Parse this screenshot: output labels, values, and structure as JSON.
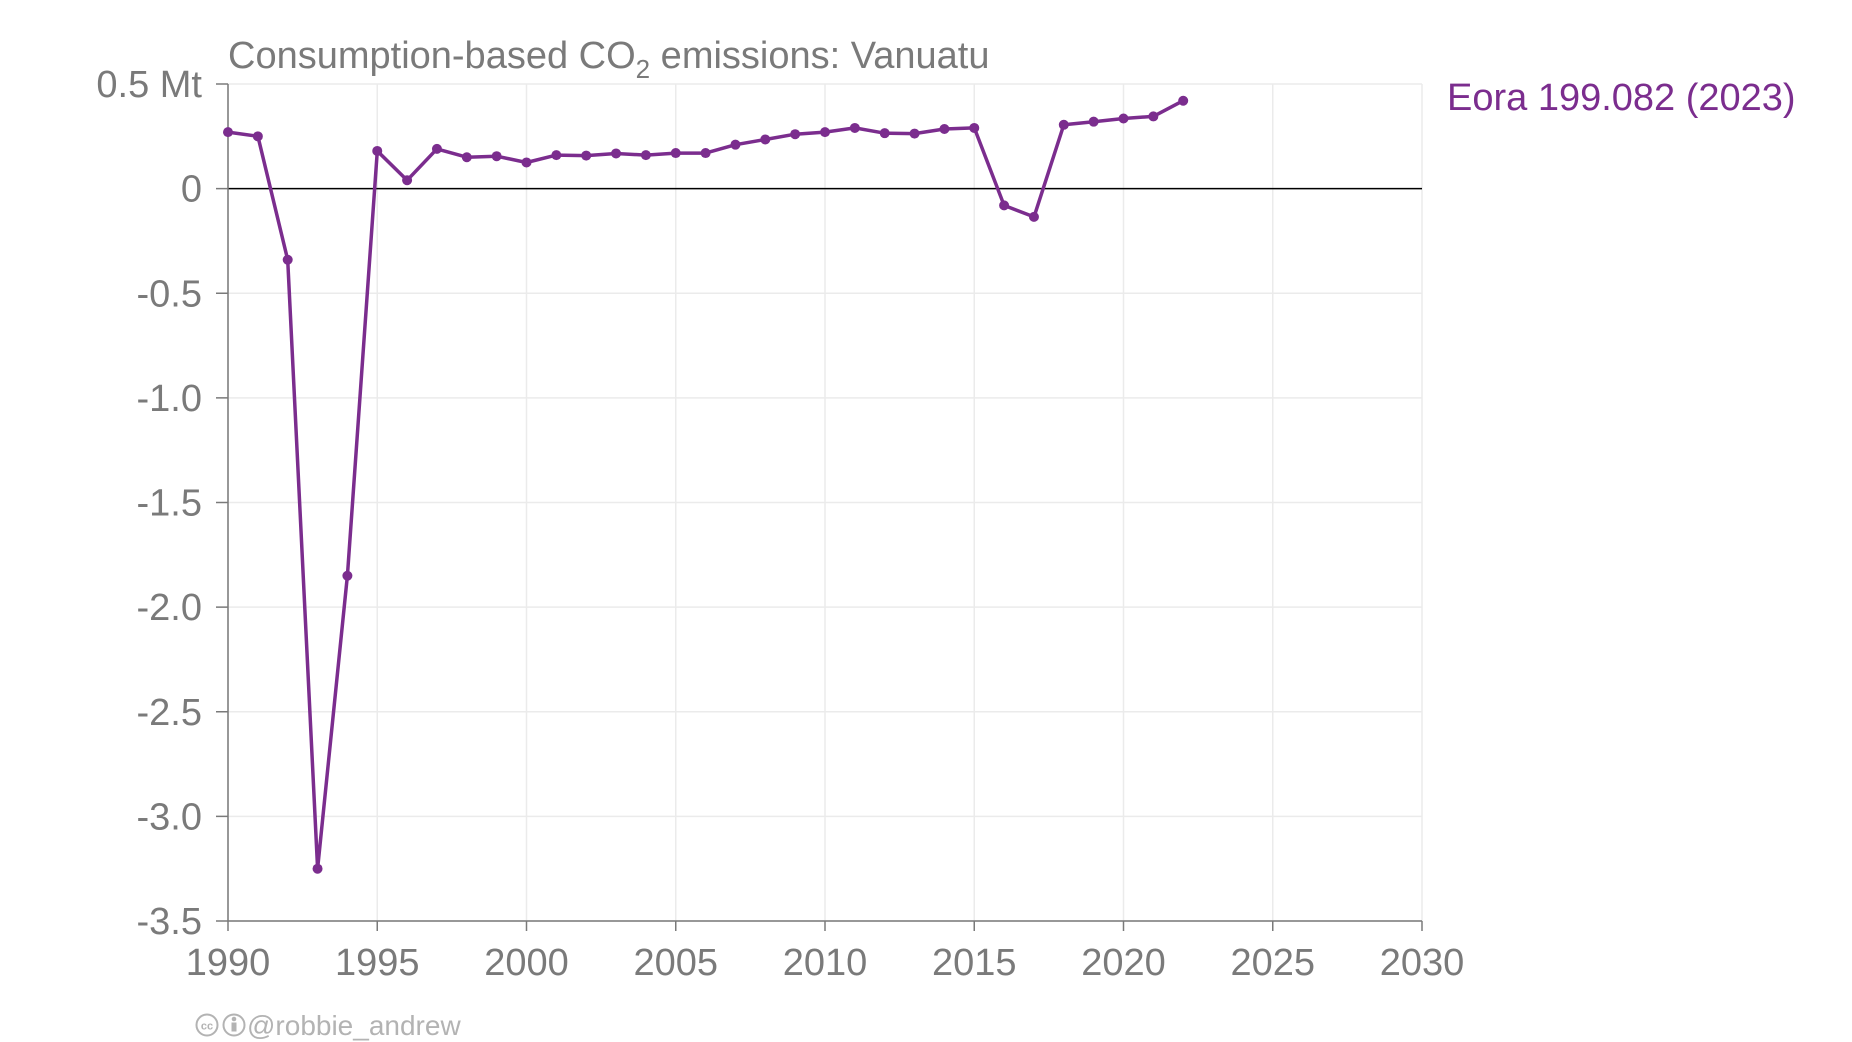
{
  "chart_data": {
    "type": "line",
    "title_prefix": "Consumption-based CO",
    "title_subscript": "2",
    "title_suffix": " emissions: Vanuatu",
    "xlim": [
      1990,
      2030
    ],
    "ylim": [
      -3.5,
      0.5
    ],
    "x_ticks": [
      1990,
      1995,
      2000,
      2005,
      2010,
      2015,
      2020,
      2025,
      2030
    ],
    "x_tick_labels": [
      "1990",
      "1995",
      "2000",
      "2005",
      "2010",
      "2015",
      "2020",
      "2025",
      "2030"
    ],
    "y_ticks": [
      0.5,
      0,
      -0.5,
      -1.0,
      -1.5,
      -2.0,
      -2.5,
      -3.0,
      -3.5
    ],
    "y_tick_labels": [
      "0.5 Mt",
      "0",
      "-0.5",
      "-1.0",
      "-1.5",
      "-2.0",
      "-2.5",
      "-3.0",
      "-3.5"
    ],
    "grid": true,
    "series": [
      {
        "name": "Eora 199.082 (2023)",
        "color": "#7b2d8e",
        "x": [
          1990,
          1991,
          1992,
          1993,
          1994,
          1995,
          1996,
          1997,
          1998,
          1999,
          2000,
          2001,
          2002,
          2003,
          2004,
          2005,
          2006,
          2007,
          2008,
          2009,
          2010,
          2011,
          2012,
          2013,
          2014,
          2015,
          2016,
          2017,
          2018,
          2019,
          2020,
          2021,
          2022
        ],
        "y": [
          0.27,
          0.25,
          -0.34,
          -3.25,
          -1.85,
          0.18,
          0.04,
          0.19,
          0.15,
          0.155,
          0.125,
          0.16,
          0.158,
          0.168,
          0.16,
          0.17,
          0.17,
          0.21,
          0.235,
          0.26,
          0.27,
          0.29,
          0.265,
          0.263,
          0.285,
          0.29,
          -0.08,
          -0.135,
          0.305,
          0.32,
          0.335,
          0.345,
          0.42
        ]
      }
    ]
  },
  "credit": {
    "icons": [
      "cc-icon",
      "attribution-icon"
    ],
    "text": "@robbie_andrew"
  }
}
